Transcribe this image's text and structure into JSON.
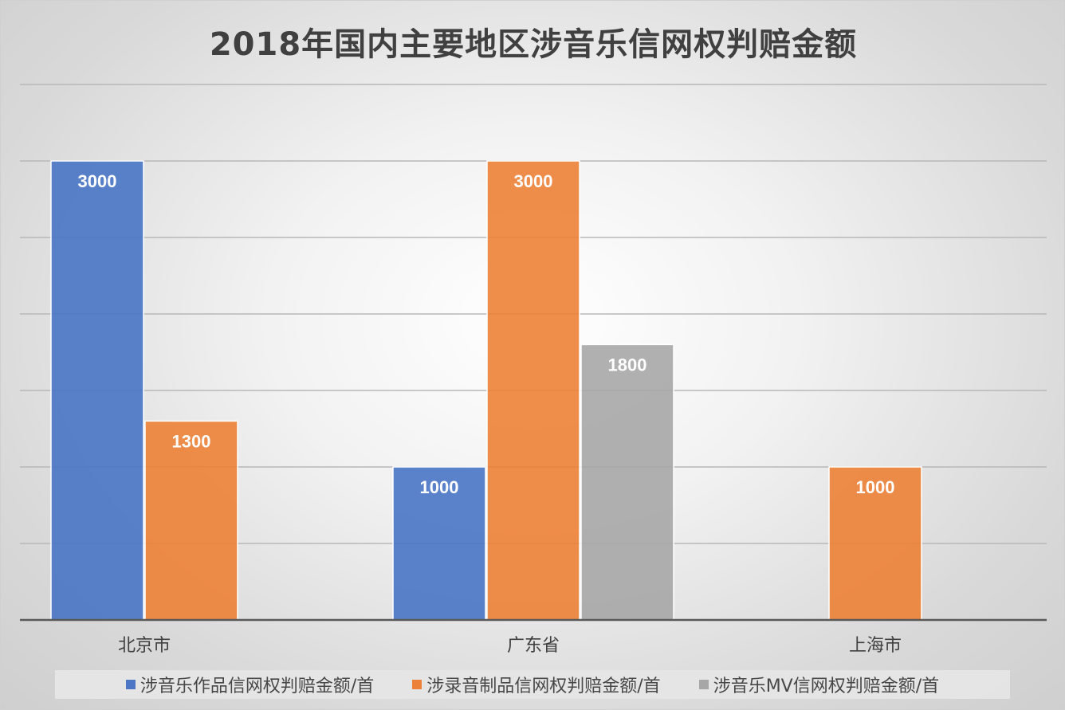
{
  "chart_data": {
    "type": "bar",
    "title": "2018年国内主要地区涉音乐信网权判赔金额",
    "categories": [
      "北京市",
      "广东省",
      "上海市"
    ],
    "series": [
      {
        "name": "涉音乐作品信网权判赔金额/首",
        "color": "#4472c4",
        "values": [
          3000,
          1000,
          null
        ]
      },
      {
        "name": "涉录音制品信网权判赔金额/首",
        "color": "#ed7d31",
        "values": [
          1300,
          3000,
          1000
        ]
      },
      {
        "name": "涉音乐MV信网权判赔金额/首",
        "color": "#a5a5a5",
        "values": [
          null,
          1800,
          null
        ]
      }
    ],
    "data_labels": [
      [
        "3000",
        "1000",
        ""
      ],
      [
        "1300",
        "3000",
        "1000"
      ],
      [
        "",
        "1800",
        ""
      ]
    ],
    "ylim": [
      0,
      3500
    ],
    "y_gridline_step": 500,
    "y_tick_labels_shown": false,
    "grid": true,
    "legend_position": "bottom"
  }
}
